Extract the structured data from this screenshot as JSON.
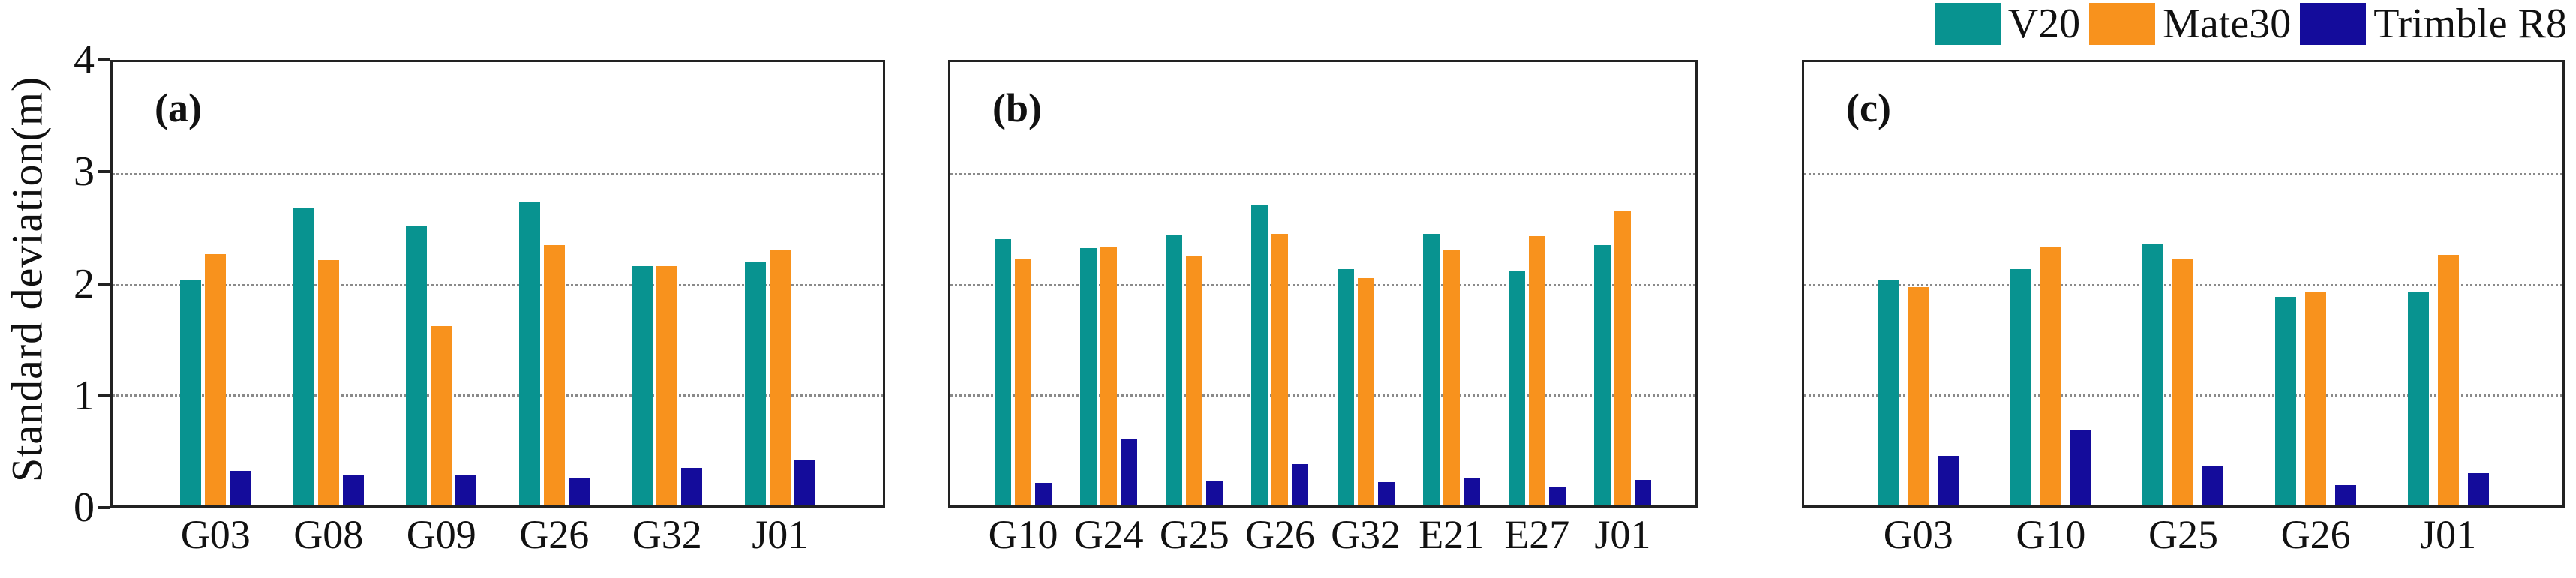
{
  "figure": {
    "ylabel": "Standard deviation(m)",
    "colors": {
      "v20": "#089390",
      "mate30": "#F8921D",
      "trimble_r8": "#140C9B",
      "axis": "#222222",
      "grid": "#8a8a8a"
    },
    "legend": {
      "items": [
        {
          "name": "v20",
          "label": "V20",
          "color": "#089390"
        },
        {
          "name": "mate30",
          "label": "Mate30",
          "color": "#F8921D"
        },
        {
          "name": "trimble_r8",
          "label": "Trimble R8",
          "color": "#140C9B"
        }
      ]
    }
  },
  "chart_data": {
    "type": "bar",
    "title": "",
    "xlabel": "",
    "ylabel": "Standard deviation(m)",
    "ylim": [
      0,
      4
    ],
    "yticks": [
      0,
      1,
      2,
      3,
      4
    ],
    "grid": "horizontal dotted lines at y=1,2,3",
    "legend_position": "top-right above panels",
    "series_names": [
      "V20",
      "Mate30",
      "Trimble R8"
    ],
    "series_colors": [
      "#089390",
      "#F8921D",
      "#140C9B"
    ],
    "panels": [
      {
        "label": "(a)",
        "categories": [
          "G03",
          "G08",
          "G09",
          "G26",
          "G32",
          "J01"
        ],
        "series": [
          {
            "name": "V20",
            "values": [
              2.03,
              2.68,
              2.52,
              2.74,
              2.16,
              2.19
            ]
          },
          {
            "name": "Mate30",
            "values": [
              2.27,
              2.21,
              1.62,
              2.35,
              2.16,
              2.31
            ]
          },
          {
            "name": "Trimble R8",
            "values": [
              0.31,
              0.28,
              0.28,
              0.25,
              0.34,
              0.41
            ]
          }
        ]
      },
      {
        "label": "(b)",
        "categories": [
          "G10",
          "G24",
          "G25",
          "G26",
          "G32",
          "E21",
          "E27",
          "J01"
        ],
        "series": [
          {
            "name": "V20",
            "values": [
              2.4,
              2.32,
              2.44,
              2.71,
              2.13,
              2.45,
              2.12,
              2.35
            ]
          },
          {
            "name": "Mate30",
            "values": [
              2.23,
              2.33,
              2.25,
              2.45,
              2.05,
              2.31,
              2.43,
              2.65
            ]
          },
          {
            "name": "Trimble R8",
            "values": [
              0.2,
              0.6,
              0.22,
              0.37,
              0.21,
              0.25,
              0.17,
              0.23
            ]
          }
        ]
      },
      {
        "label": "(c)",
        "categories": [
          "G03",
          "G10",
          "G25",
          "G26",
          "J01"
        ],
        "series": [
          {
            "name": "V20",
            "values": [
              2.03,
              2.13,
              2.36,
              1.88,
              1.93
            ]
          },
          {
            "name": "Mate30",
            "values": [
              1.97,
              2.33,
              2.23,
              1.92,
              2.26
            ]
          },
          {
            "name": "Trimble R8",
            "values": [
              0.45,
              0.68,
              0.35,
              0.18,
              0.29
            ]
          }
        ]
      }
    ]
  }
}
